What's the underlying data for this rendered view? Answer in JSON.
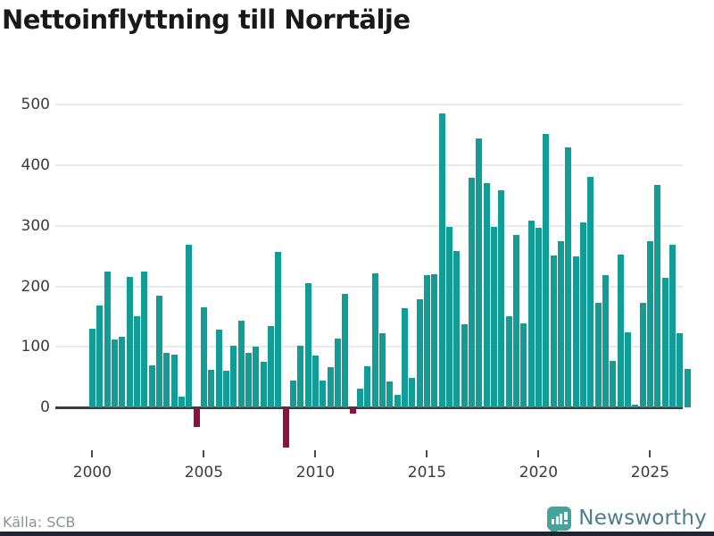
{
  "title": "Nettoinflyttning till Norrtälje",
  "source": "Källa: SCB",
  "branding": {
    "name": "Newsworthy",
    "icon": "newsworthy-speech-bubble-barchart-icon"
  },
  "colors": {
    "bar_positive": "#119c96",
    "bar_negative": "#8e1041",
    "gridline": "#e9e9e9",
    "zero_axis": "#3c3c3c",
    "title_text": "#191919",
    "tick_text": "#3b3b3b",
    "source_text": "#8d9297",
    "brand_text": "#4e7d8d",
    "brand_icon": "#44a39b",
    "bottom_accent": "#1b2834"
  },
  "chart_data": {
    "type": "bar",
    "title": "Nettoinflyttning till Norrtälje",
    "xlabel": "",
    "ylabel": "",
    "y_ticks": [
      0,
      100,
      200,
      300,
      400,
      500
    ],
    "ylim": [
      -85,
      510
    ],
    "grid": "horizontal",
    "legend": "none",
    "start_year": 2000,
    "periods_per_year": 3,
    "x_tick_labels": [
      "2000",
      "2005",
      "2010",
      "2015",
      "2020",
      "2025"
    ],
    "x_tick_indices": [
      0,
      15,
      30,
      45,
      60,
      75
    ],
    "values": [
      130,
      168,
      225,
      112,
      117,
      215,
      150,
      225,
      70,
      185,
      90,
      87,
      18,
      268,
      -30,
      166,
      62,
      128,
      61,
      102,
      143,
      90,
      101,
      75,
      135,
      257,
      -64,
      44,
      102,
      205,
      86,
      45,
      66,
      114,
      187,
      -8,
      31,
      68,
      221,
      123,
      43,
      21,
      164,
      48,
      179,
      218,
      220,
      486,
      298,
      258,
      137,
      380,
      445,
      370,
      298,
      358,
      150,
      285,
      139,
      308,
      296,
      452,
      251,
      275,
      429,
      249,
      305,
      381,
      173,
      219,
      77,
      253,
      124,
      5,
      173,
      274,
      368,
      214,
      269,
      123,
      63
    ]
  }
}
